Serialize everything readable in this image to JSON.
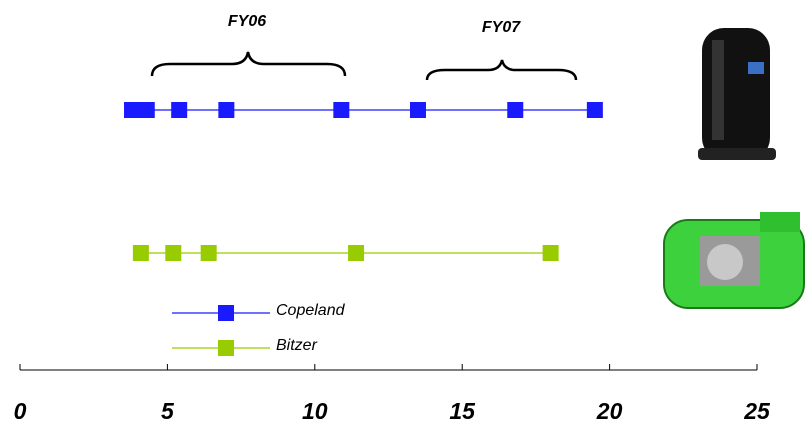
{
  "chart_data": {
    "type": "strip",
    "annotations": [
      "FY06",
      "FY07"
    ],
    "series": [
      {
        "name": "Copeland",
        "color": "#1a1aff",
        "values": [
          3.8,
          4.3,
          5.4,
          7.0,
          10.9,
          13.5,
          16.8,
          19.5
        ]
      },
      {
        "name": "Bitzer",
        "color": "#99cc00",
        "values": [
          4.1,
          5.2,
          6.4,
          11.4,
          18.0
        ]
      }
    ],
    "xlim": [
      0,
      25
    ],
    "xticks": [
      0,
      5,
      10,
      15,
      20,
      25
    ]
  }
}
